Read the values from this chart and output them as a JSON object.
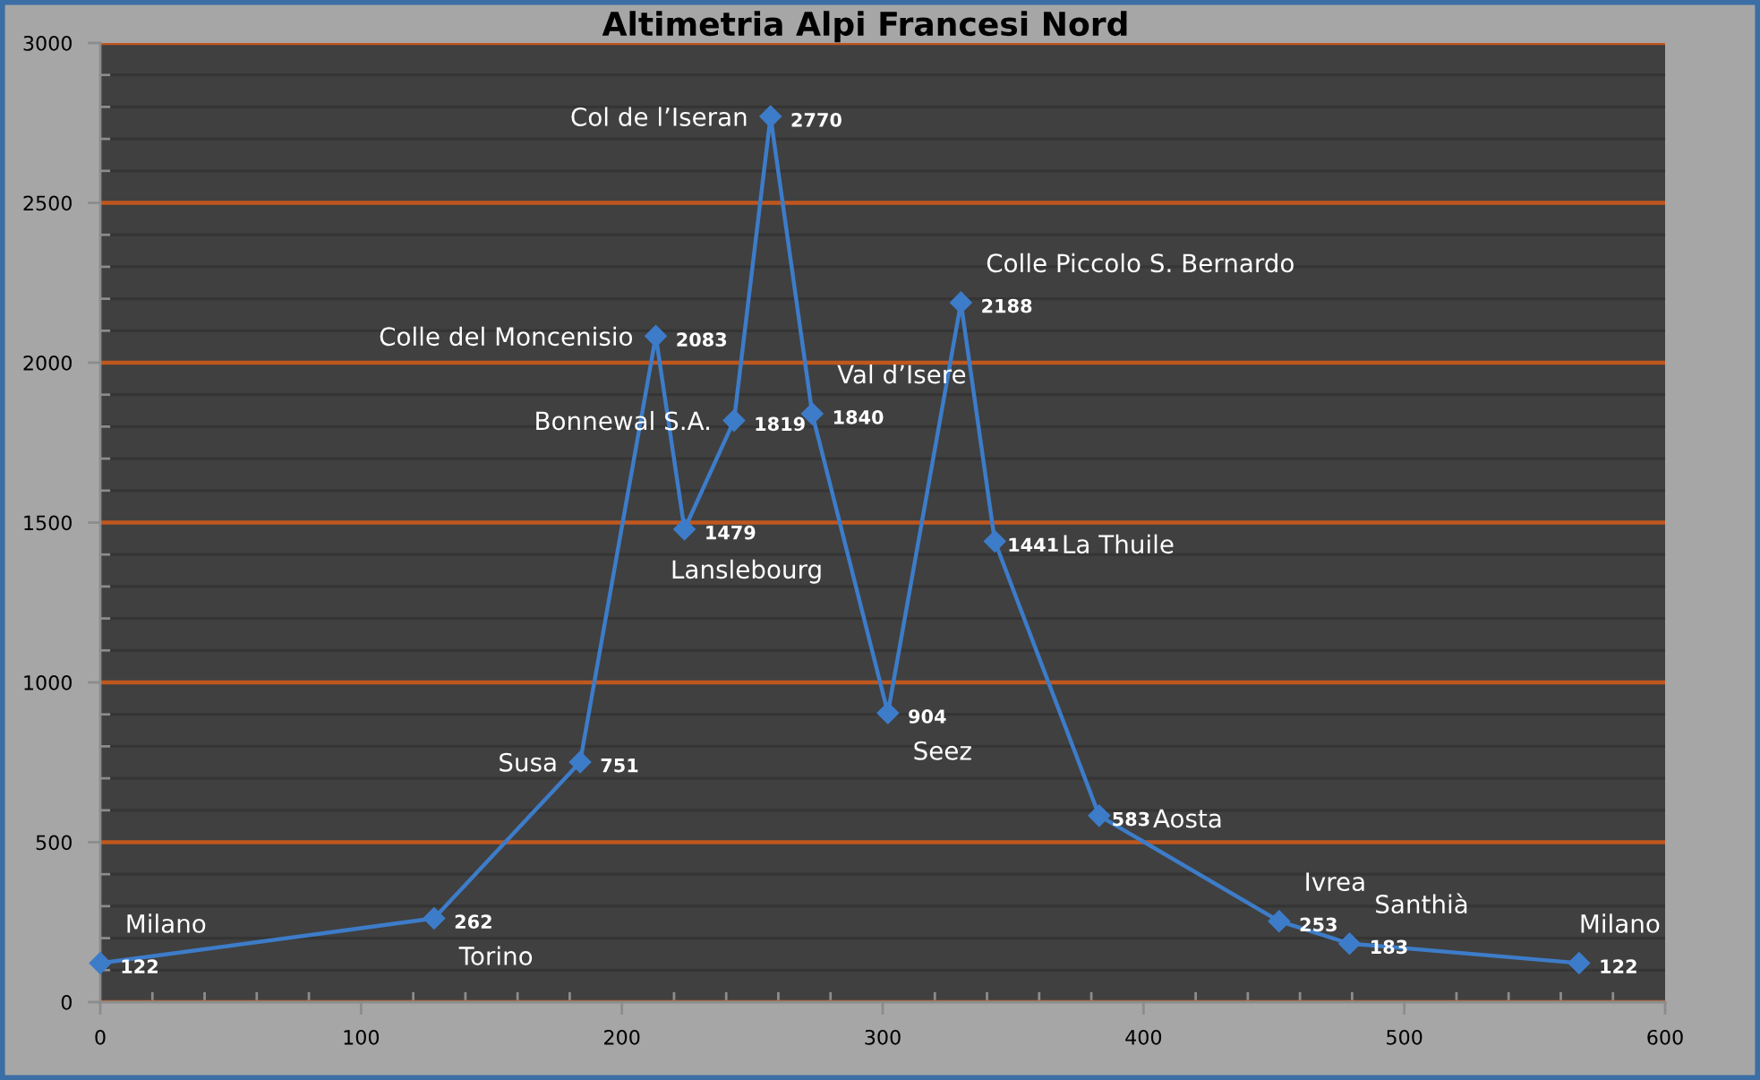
{
  "chart_data": {
    "type": "line",
    "title": "Altimetria Alpi Francesi Nord",
    "x": [
      0,
      128,
      184,
      213,
      224,
      243,
      257,
      273,
      302,
      330,
      343,
      383,
      452,
      479,
      567
    ],
    "values": [
      122,
      262,
      751,
      2083,
      1479,
      1819,
      2770,
      1840,
      904,
      2188,
      1441,
      583,
      253,
      183,
      122
    ],
    "color": "#3d7cc9",
    "marker": "diamond",
    "line_style": "solid",
    "xlim": [
      0,
      600
    ],
    "ylim": [
      0,
      3000
    ],
    "xticks": [
      0,
      {
        "value": 20,
        "label": null
      },
      {
        "value": 40,
        "label": null
      },
      {
        "value": 60,
        "label": null
      },
      {
        "value": 80,
        "label": null
      },
      100,
      {
        "value": 120,
        "label": null
      },
      {
        "value": 140,
        "label": null
      },
      {
        "value": 160,
        "label": null
      },
      {
        "value": 180,
        "label": null
      },
      200,
      {
        "value": 220,
        "label": null
      },
      {
        "value": 240,
        "label": null
      },
      {
        "value": 260,
        "label": null
      },
      {
        "value": 280,
        "label": null
      },
      300,
      {
        "value": 320,
        "label": null
      },
      {
        "value": 340,
        "label": null
      },
      {
        "value": 360,
        "label": null
      },
      {
        "value": 380,
        "label": null
      },
      400,
      {
        "value": 420,
        "label": null
      },
      {
        "value": 440,
        "label": null
      },
      {
        "value": 460,
        "label": null
      },
      {
        "value": 480,
        "label": null
      },
      500,
      {
        "value": 520,
        "label": null
      },
      {
        "value": 540,
        "label": null
      },
      {
        "value": 560,
        "label": null
      },
      {
        "value": 580,
        "label": null
      },
      600
    ],
    "yticks": [
      0,
      {
        "value": 100,
        "label": null
      },
      {
        "value": 200,
        "label": null
      },
      {
        "value": 300,
        "label": null
      },
      {
        "value": 400,
        "label": null
      },
      500,
      {
        "value": 600,
        "label": null
      },
      {
        "value": 700,
        "label": null
      },
      {
        "value": 800,
        "label": null
      },
      {
        "value": 900,
        "label": null
      },
      1000,
      {
        "value": 1100,
        "label": null
      },
      {
        "value": 1200,
        "label": null
      },
      {
        "value": 1300,
        "label": null
      },
      {
        "value": 1400,
        "label": null
      },
      1500,
      {
        "value": 1600,
        "label": null
      },
      {
        "value": 1700,
        "label": null
      },
      {
        "value": 1800,
        "label": null
      },
      {
        "value": 1900,
        "label": null
      },
      2000,
      {
        "value": 2100,
        "label": null
      },
      {
        "value": 2200,
        "label": null
      },
      {
        "value": 2300,
        "label": null
      },
      {
        "value": 2400,
        "label": null
      },
      2500,
      {
        "value": 2600,
        "label": null
      },
      {
        "value": 2700,
        "label": null
      },
      {
        "value": 2800,
        "label": null
      },
      {
        "value": 2900,
        "label": null
      },
      3000
    ],
    "grid": "y",
    "data_labels": true,
    "annotations": [
      {
        "text": "Milano",
        "x": 0,
        "y": 122
      },
      {
        "text": "Torino",
        "x": 128,
        "y": 262
      },
      {
        "text": "Susa",
        "x": 184,
        "y": 751
      },
      {
        "text": "Colle del Moncenisio",
        "x": 213,
        "y": 2083
      },
      {
        "text": "Lanslebourg",
        "x": 224,
        "y": 1479
      },
      {
        "text": "Bonnewal S.A.",
        "x": 243,
        "y": 1819
      },
      {
        "text": "Col de l’Iseran",
        "x": 257,
        "y": 2770
      },
      {
        "text": "Val d’Isere",
        "x": 273,
        "y": 1840
      },
      {
        "text": "Seez",
        "x": 302,
        "y": 904
      },
      {
        "text": "Colle Piccolo S. Bernardo",
        "x": 330,
        "y": 2188
      },
      {
        "text": "La Thuile",
        "x": 343,
        "y": 1441
      },
      {
        "text": "Aosta",
        "x": 383,
        "y": 583
      },
      {
        "text": "Ivrea",
        "x": 452,
        "y": 253
      },
      {
        "text": "Santhià",
        "x": 479,
        "y": 183
      },
      {
        "text": "Milano",
        "x": 567,
        "y": 122
      }
    ]
  }
}
